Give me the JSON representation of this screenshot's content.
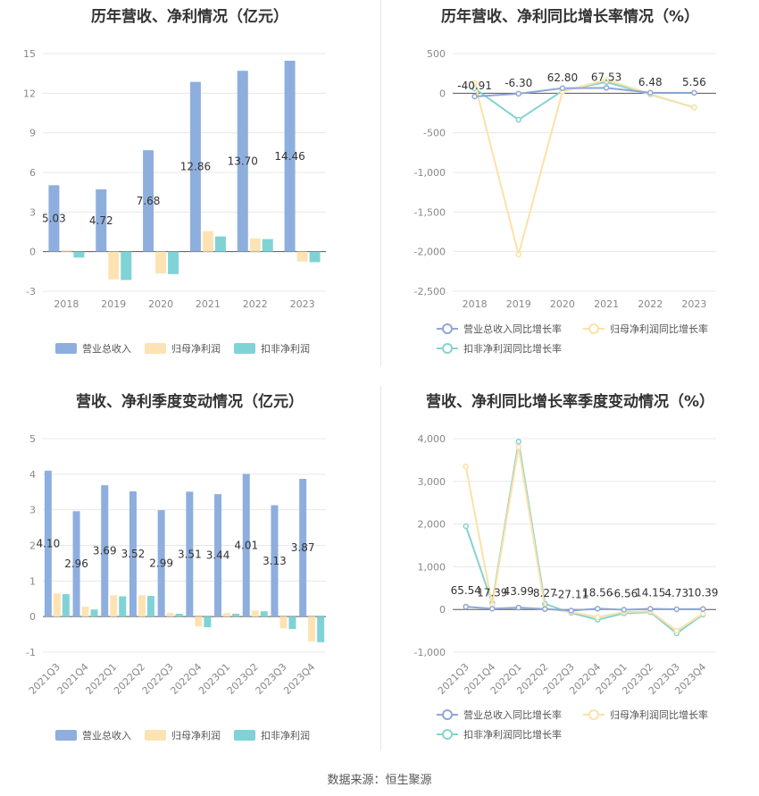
{
  "footer": {
    "source": "数据来源：恒生聚源"
  },
  "colors": {
    "revenue": "#8eaede",
    "parent": "#fde3b3",
    "deducted": "#7fd3d6",
    "revenue_line": "#8ea7d8",
    "parent_line": "#fde1a6",
    "deducted_line": "#86d2d2"
  },
  "chart_data": [
    {
      "type": "bar",
      "title": "历年营收、净利情况（亿元）",
      "categories": [
        "2018",
        "2019",
        "2020",
        "2021",
        "2022",
        "2023"
      ],
      "yticks": [
        "15",
        "12",
        "9",
        "6",
        "3",
        "0",
        "-3"
      ],
      "ylim": [
        -3,
        15
      ],
      "series": [
        {
          "name": "营业总收入",
          "values": [
            5.03,
            4.72,
            7.68,
            12.86,
            13.7,
            14.46
          ],
          "labels": [
            "5.03",
            "4.72",
            "7.68",
            "12.86",
            "13.70",
            "14.46"
          ]
        },
        {
          "name": "归母净利润",
          "values": [
            0.1,
            -2.1,
            -1.65,
            1.55,
            1.0,
            -0.75
          ]
        },
        {
          "name": "扣非净利润",
          "values": [
            -0.45,
            -2.15,
            -1.7,
            1.15,
            0.95,
            -0.8
          ]
        }
      ],
      "legend": "bottom"
    },
    {
      "type": "line",
      "title": "历年营收、净利同比增长率情况（%）",
      "categories": [
        "2018",
        "2019",
        "2020",
        "2021",
        "2022",
        "2023"
      ],
      "yticks": [
        "500",
        "0",
        "-500",
        "-1,000",
        "-1,500",
        "-2,000",
        "-2,500"
      ],
      "ylim": [
        -2500,
        500
      ],
      "series": [
        {
          "name": "营业总收入同比增长率",
          "values": [
            -40.91,
            -6.3,
            62.8,
            67.53,
            6.48,
            5.56
          ],
          "labels": [
            "-40.91",
            "-6.30",
            "62.80",
            "67.53",
            "6.48",
            "5.56"
          ]
        },
        {
          "name": "归母净利润同比增长率",
          "values": [
            130,
            -2035,
            20,
            170,
            -10,
            -180
          ]
        },
        {
          "name": "扣非净利润同比增长率",
          "values": [
            60,
            -335,
            30,
            140,
            -15,
            -180
          ]
        }
      ],
      "legend": "bottom"
    },
    {
      "type": "bar",
      "title": "营收、净利季度变动情况（亿元）",
      "categories": [
        "2021Q3",
        "2021Q4",
        "2022Q1",
        "2022Q2",
        "2022Q3",
        "2022Q4",
        "2023Q1",
        "2023Q2",
        "2023Q3",
        "2023Q4"
      ],
      "yticks": [
        "5",
        "4",
        "3",
        "2",
        "1",
        "0",
        "-1"
      ],
      "ylim": [
        -1,
        5
      ],
      "series": [
        {
          "name": "营业总收入",
          "values": [
            4.1,
            2.96,
            3.69,
            3.52,
            2.99,
            3.51,
            3.44,
            4.01,
            3.13,
            3.87
          ],
          "labels": [
            "4.10",
            "2.96",
            "3.69",
            "3.52",
            "2.99",
            "3.51",
            "3.44",
            "4.01",
            "3.13",
            "3.87"
          ]
        },
        {
          "name": "归母净利润",
          "values": [
            0.65,
            0.28,
            0.6,
            0.6,
            0.1,
            -0.28,
            0.1,
            0.17,
            -0.33,
            -0.7
          ]
        },
        {
          "name": "扣非净利润",
          "values": [
            0.63,
            0.2,
            0.57,
            0.58,
            0.08,
            -0.3,
            0.08,
            0.15,
            -0.35,
            -0.72
          ]
        }
      ],
      "legend": "bottom"
    },
    {
      "type": "line",
      "title": "营收、净利同比增长率季度变动情况（%）",
      "categories": [
        "2021Q3",
        "2021Q4",
        "2022Q1",
        "2022Q2",
        "2022Q3",
        "2022Q4",
        "2023Q1",
        "2023Q2",
        "2023Q3",
        "2023Q4"
      ],
      "yticks": [
        "4,000",
        "3,000",
        "2,000",
        "1,000",
        "0",
        "-1,000"
      ],
      "ylim": [
        -1000,
        4000
      ],
      "series": [
        {
          "name": "营业总收入同比增长率",
          "values": [
            65.54,
            17.39,
            43.99,
            8.27,
            -27.11,
            18.56,
            -6.56,
            14.15,
            4.73,
            10.39
          ],
          "labels": [
            "65.54",
            "17.39",
            "43.99",
            "8.27",
            "-27.11",
            "18.56",
            "-6.56",
            "14.15",
            "4.73",
            "10.39"
          ]
        },
        {
          "name": "归母净利润同比增长率",
          "values": [
            3350,
            100,
            3800,
            30,
            -60,
            -180,
            -60,
            -40,
            -500,
            -100
          ]
        },
        {
          "name": "扣非净利润同比增长率",
          "values": [
            1950,
            150,
            3930,
            130,
            -80,
            -240,
            -90,
            -60,
            -560,
            -120
          ]
        }
      ],
      "legend": "bottom"
    }
  ]
}
